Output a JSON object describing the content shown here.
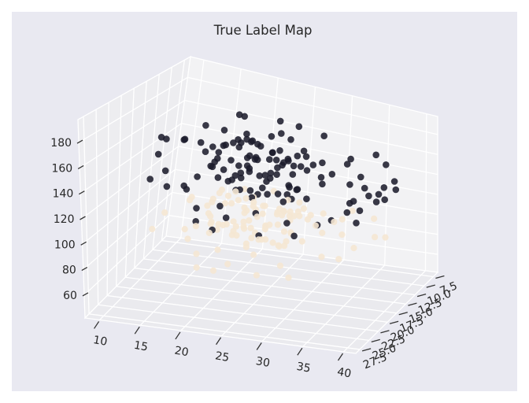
{
  "title": "True Label Map",
  "chart_data": {
    "type": "scatter",
    "projection": "3d",
    "title": "True Label Map",
    "legend": "none",
    "grid": true,
    "xlim": [
      8.2,
      41.5
    ],
    "ylim": [
      6.3,
      28.6
    ],
    "zlim": [
      42,
      198
    ],
    "x_ticks": [
      "10",
      "15",
      "20",
      "25",
      "30",
      "35",
      "40"
    ],
    "y_ticks": [
      "7.5",
      "10.0",
      "12.5",
      "15.0",
      "17.5",
      "20.0",
      "22.5",
      "25.0",
      "27.5"
    ],
    "z_ticks": [
      "60",
      "80",
      "100",
      "120",
      "140",
      "160",
      "180"
    ],
    "colors": {
      "figure_margin": "#ffffff",
      "background": "#e9e9f1",
      "pane_left": "#ededf0",
      "pane_right": "#f2f2f4",
      "pane_floor": "#eaeaee",
      "grid": "#ffffff",
      "text": "#262626",
      "tick_mark": "#343434",
      "class_dark": "#1b1b2c",
      "class_light": "#f5e7d3"
    },
    "series": [
      {
        "name": "label-0-light",
        "color_key": "class_light",
        "opacity": 0.9,
        "points": [
          [
            21.5,
            15.3,
            104
          ],
          [
            23.2,
            17.1,
            98
          ],
          [
            19.8,
            13.5,
            108
          ],
          [
            25.0,
            18.8,
            95
          ],
          [
            22.3,
            12.2,
            102
          ],
          [
            26.5,
            16.0,
            110
          ],
          [
            18.5,
            17.5,
            99
          ],
          [
            24.1,
            14.1,
            93
          ],
          [
            20.5,
            19.8,
            106
          ],
          [
            27.2,
            12.9,
            101
          ],
          [
            17.9,
            16.3,
            112
          ],
          [
            23.8,
            11.5,
            96
          ],
          [
            25.5,
            18.2,
            103
          ],
          [
            19.2,
            14.9,
            115
          ],
          [
            28.0,
            16.6,
            97
          ],
          [
            21.2,
            19.2,
            105
          ],
          [
            24.7,
            13.2,
            91
          ],
          [
            16.9,
            14.0,
            107
          ],
          [
            26.0,
            20.1,
            100
          ],
          [
            22.8,
            15.8,
            113
          ],
          [
            20.1,
            11.8,
            94
          ],
          [
            27.7,
            15.4,
            109
          ],
          [
            18.1,
            17.0,
            102
          ],
          [
            25.2,
            11.1,
            97
          ],
          [
            23.4,
            18.6,
            89
          ],
          [
            29.0,
            14.5,
            105
          ],
          [
            17.2,
            12.5,
            111
          ],
          [
            24.4,
            16.1,
            116
          ],
          [
            21.8,
            17.8,
            92
          ],
          [
            26.8,
            12.4,
            103
          ],
          [
            19.5,
            14.6,
            108
          ],
          [
            28.5,
            19.0,
            98
          ],
          [
            22.1,
            16.7,
            101
          ],
          [
            25.8,
            13.8,
            88
          ],
          [
            16.4,
            11.4,
            104
          ],
          [
            23.5,
            19.6,
            107
          ],
          [
            20.3,
            13.1,
            117
          ],
          [
            27.5,
            15.7,
            95
          ],
          [
            18.8,
            18.3,
            100
          ],
          [
            24.0,
            12.0,
            96
          ],
          [
            30.2,
            14.9,
            102
          ],
          [
            21.0,
            17.3,
            90
          ],
          [
            26.2,
            10.9,
            106
          ],
          [
            19.9,
            18.9,
            98
          ],
          [
            28.2,
            13.9,
            112
          ],
          [
            23.0,
            16.4,
            87
          ],
          [
            17.6,
            12.3,
            99
          ],
          [
            25.4,
            17.9,
            104
          ],
          [
            22.5,
            15.1,
            114
          ],
          [
            29.5,
            16.9,
            93
          ],
          [
            20.7,
            13.7,
            103
          ],
          [
            27.0,
            19.3,
            96
          ],
          [
            18.3,
            11.2,
            107
          ],
          [
            24.9,
            16.8,
            89
          ],
          [
            21.3,
            12.7,
            110
          ],
          [
            31.5,
            15.9,
            100
          ],
          [
            16.7,
            17.7,
            94
          ],
          [
            26.7,
            14.4,
            105
          ],
          [
            23.3,
            11.7,
            115
          ],
          [
            28.7,
            19.9,
            97
          ],
          [
            19.0,
            15.5,
            91
          ],
          [
            25.1,
            12.6,
            102
          ],
          [
            22.0,
            19.1,
            108
          ],
          [
            30.8,
            11.3,
            95
          ],
          [
            17.0,
            15.2,
            98
          ],
          [
            26.9,
            17.4,
            87
          ],
          [
            20.8,
            13.6,
            111
          ],
          [
            24.2,
            20.3,
            92
          ],
          [
            29.8,
            12.1,
            104
          ],
          [
            21.6,
            17.6,
            99
          ],
          [
            33.4,
            14.7,
            97
          ],
          [
            35.6,
            16.2,
            92
          ],
          [
            32.1,
            11.9,
            101
          ],
          [
            34.8,
            18.5,
            88
          ],
          [
            36.9,
            13.4,
            95
          ],
          [
            13.9,
            13.3,
            103
          ],
          [
            12.2,
            16.5,
            97
          ],
          [
            15.1,
            11.6,
            92
          ],
          [
            11.8,
            18.7,
            89
          ],
          [
            14.5,
            15.0,
            106
          ],
          [
            26.3,
            22.8,
            95
          ],
          [
            22.7,
            24.5,
            100
          ],
          [
            19.7,
            23.7,
            91
          ],
          [
            29.3,
            22.2,
            87
          ],
          [
            24.6,
            25.9,
            94
          ],
          [
            18.0,
            22.4,
            98
          ],
          [
            31.3,
            24.3,
            85
          ],
          [
            21.2,
            26.8,
            90
          ],
          [
            27.8,
            25.2,
            86
          ],
          [
            23.6,
            27.5,
            92
          ],
          [
            25.6,
            21.0,
            108
          ],
          [
            20.2,
            21.5,
            103
          ],
          [
            28.3,
            20.6,
            99
          ],
          [
            16.2,
            19.5,
            96
          ],
          [
            33.0,
            19.2,
            90
          ],
          [
            35.0,
            9.6,
            98
          ],
          [
            37.8,
            12.5,
            93
          ],
          [
            31.9,
            8.8,
            99
          ],
          [
            23.9,
            9.1,
            100
          ],
          [
            27.4,
            10.3,
            94
          ],
          [
            22.4,
            14.3,
            105
          ],
          [
            24.3,
            15.6,
            97
          ],
          [
            23.1,
            13.9,
            101
          ],
          [
            21.9,
            16.1,
            93
          ],
          [
            25.3,
            14.2,
            109
          ],
          [
            20.4,
            15.7,
            88
          ],
          [
            26.1,
            13.0,
            96
          ],
          [
            22.9,
            17.0,
            104
          ],
          [
            24.8,
            11.9,
            99
          ],
          [
            23.7,
            16.6,
            107
          ]
        ]
      },
      {
        "name": "label-1-dark",
        "color_key": "class_dark",
        "opacity": 0.87,
        "points": [
          [
            21.3,
            14.2,
            151
          ],
          [
            23.8,
            16.5,
            143
          ],
          [
            19.4,
            12.8,
            156
          ],
          [
            25.1,
            18.3,
            139
          ],
          [
            22.7,
            11.4,
            148
          ],
          [
            26.9,
            15.7,
            160
          ],
          [
            18.2,
            17.1,
            145
          ],
          [
            24.5,
            13.6,
            137
          ],
          [
            20.8,
            19.4,
            152
          ],
          [
            27.6,
            12.2,
            141
          ],
          [
            17.5,
            15.9,
            158
          ],
          [
            23.1,
            10.7,
            133
          ],
          [
            25.8,
            17.8,
            147
          ],
          [
            19.9,
            14.5,
            164
          ],
          [
            28.4,
            16.1,
            136
          ],
          [
            21.6,
            18.9,
            143
          ],
          [
            24.2,
            12.5,
            155
          ],
          [
            16.8,
            13.3,
            140
          ],
          [
            26.3,
            19.7,
            150
          ],
          [
            22.1,
            15.2,
            168
          ],
          [
            20.4,
            11.1,
            138
          ],
          [
            27.1,
            14.8,
            144
          ],
          [
            18.7,
            16.7,
            157
          ],
          [
            25.4,
            10.4,
            146
          ],
          [
            23.5,
            18.1,
            134
          ],
          [
            29.2,
            13.9,
            153
          ],
          [
            17.1,
            12.1,
            149
          ],
          [
            24.8,
            15.4,
            162
          ],
          [
            21.9,
            17.5,
            131
          ],
          [
            26.6,
            11.8,
            142
          ],
          [
            19.1,
            14.1,
            159
          ],
          [
            28.9,
            18.6,
            135
          ],
          [
            22.4,
            16.3,
            147
          ],
          [
            25.9,
            13.1,
            126
          ],
          [
            16.2,
            10.9,
            144
          ],
          [
            23.9,
            19.2,
            154
          ],
          [
            20.1,
            12.9,
            165
          ],
          [
            27.8,
            15.1,
            132
          ],
          [
            18.4,
            17.9,
            148
          ],
          [
            24.1,
            11.5,
            139
          ],
          [
            30.5,
            14.4,
            145
          ],
          [
            21.1,
            16.9,
            128
          ],
          [
            26.1,
            10.2,
            151
          ],
          [
            19.6,
            18.4,
            141
          ],
          [
            28.1,
            13.5,
            158
          ],
          [
            23.3,
            15.8,
            124
          ],
          [
            17.8,
            11.9,
            136
          ],
          [
            25.6,
            17.3,
            150
          ],
          [
            22.9,
            14.7,
            163
          ],
          [
            29.7,
            16.4,
            130
          ],
          [
            20.6,
            13.4,
            146
          ],
          [
            27.3,
            18.8,
            138
          ],
          [
            18.9,
            10.5,
            152
          ],
          [
            24.7,
            16.2,
            127
          ],
          [
            21.4,
            12.6,
            157
          ],
          [
            31.2,
            15.5,
            143
          ],
          [
            16.5,
            17.4,
            135
          ],
          [
            26.8,
            14.0,
            149
          ],
          [
            23.6,
            11.2,
            166
          ],
          [
            28.6,
            19.1,
            140
          ],
          [
            19.3,
            15.3,
            129
          ],
          [
            25.3,
            12.4,
            147
          ],
          [
            22.2,
            18.5,
            155
          ],
          [
            30.1,
            10.8,
            137
          ],
          [
            17.3,
            14.9,
            142
          ],
          [
            27.0,
            16.8,
            125
          ],
          [
            20.9,
            13.2,
            160
          ],
          [
            24.4,
            19.5,
            133
          ],
          [
            29.4,
            12.0,
            150
          ],
          [
            21.7,
            17.0,
            144
          ],
          [
            33.8,
            13.7,
            141
          ],
          [
            35.2,
            16.6,
            134
          ],
          [
            37.6,
            9.8,
            138
          ],
          [
            36.8,
            12.3,
            132
          ],
          [
            34.5,
            19.9,
            127
          ],
          [
            36.3,
            15.0,
            145
          ],
          [
            32.4,
            11.6,
            152
          ],
          [
            35.4,
            17.7,
            129
          ],
          [
            36.5,
            14.3,
            136
          ],
          [
            33.1,
            20.6,
            123
          ],
          [
            12.4,
            13.0,
            150
          ],
          [
            10.8,
            16.0,
            143
          ],
          [
            14.2,
            11.3,
            137
          ],
          [
            11.5,
            19.0,
            131
          ],
          [
            13.7,
            15.6,
            158
          ],
          [
            9.9,
            12.7,
            146
          ],
          [
            15.3,
            18.2,
            128
          ],
          [
            12.9,
            10.1,
            140
          ],
          [
            14.8,
            21.3,
            135
          ],
          [
            10.3,
            14.6,
            153
          ],
          [
            20.2,
            13.8,
            183
          ],
          [
            24.9,
            16.0,
            178
          ],
          [
            18.0,
            11.0,
            174
          ],
          [
            27.4,
            14.2,
            186
          ],
          [
            22.5,
            9.5,
            171
          ],
          [
            19.8,
            17.6,
            180
          ],
          [
            25.7,
            12.8,
            168
          ],
          [
            16.0,
            15.0,
            172
          ],
          [
            23.0,
            20.0,
            176
          ],
          [
            28.8,
            10.6,
            170
          ],
          [
            26.4,
            22.5,
            130
          ],
          [
            22.8,
            24.1,
            136
          ],
          [
            19.5,
            23.3,
            128
          ],
          [
            29.9,
            21.8,
            124
          ],
          [
            24.3,
            25.6,
            132
          ],
          [
            17.6,
            22.0,
            138
          ],
          [
            31.8,
            23.9,
            121
          ],
          [
            21.0,
            26.4,
            127
          ],
          [
            27.9,
            24.8,
            119
          ],
          [
            23.4,
            27.2,
            125
          ],
          [
            35.9,
            8.6,
            148
          ],
          [
            36.9,
            11.1,
            135
          ],
          [
            37.5,
            9.2,
            128
          ],
          [
            34.0,
            7.4,
            151
          ],
          [
            37.0,
            13.3,
            128
          ],
          [
            32.9,
            9.0,
            133
          ],
          [
            36.7,
            18.0,
            122
          ],
          [
            36.1,
            15.8,
            126
          ],
          [
            33.5,
            12.0,
            120
          ],
          [
            31.0,
            7.9,
            144
          ],
          [
            22.0,
            14.0,
            150
          ],
          [
            24.0,
            15.5,
            141
          ],
          [
            23.2,
            13.0,
            147
          ],
          [
            21.5,
            16.5,
            138
          ],
          [
            25.0,
            14.8,
            154
          ],
          [
            20.0,
            15.0,
            134
          ],
          [
            26.0,
            13.5,
            129
          ],
          [
            22.6,
            17.2,
            152
          ],
          [
            24.6,
            12.2,
            144
          ],
          [
            23.7,
            16.9,
            158
          ],
          [
            37.2,
            11.5,
            125
          ],
          [
            10.5,
            13.5,
            122
          ]
        ]
      }
    ]
  }
}
